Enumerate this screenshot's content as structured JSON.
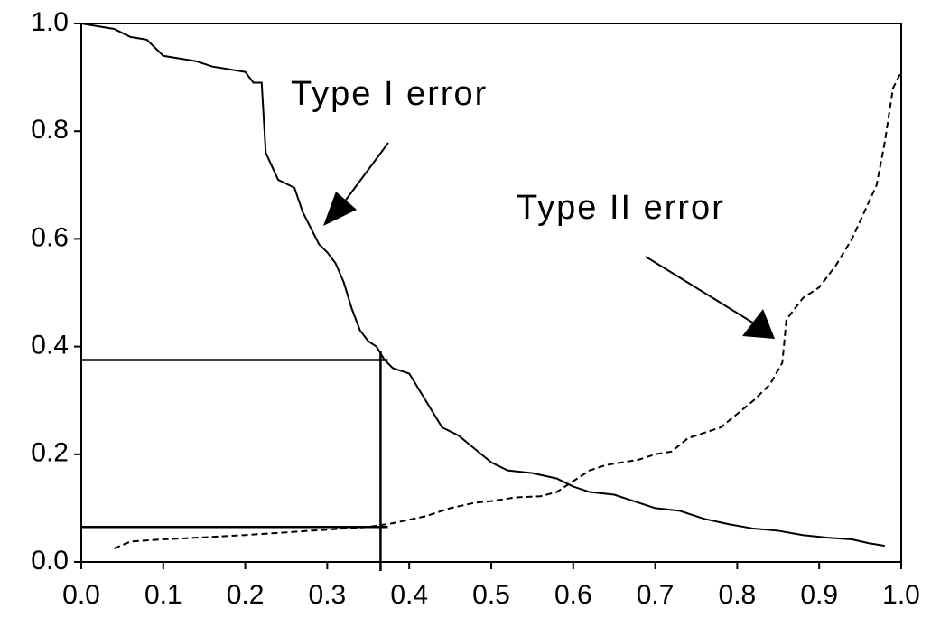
{
  "chart_data": {
    "type": "line",
    "annotations": [
      "Type I error",
      "Type II error"
    ],
    "series": [
      {
        "name": "Type I error",
        "color": "#000000",
        "dash": "solid",
        "x": [
          0.0,
          0.02,
          0.04,
          0.06,
          0.08,
          0.1,
          0.12,
          0.14,
          0.16,
          0.18,
          0.2,
          0.21,
          0.22,
          0.225,
          0.24,
          0.26,
          0.27,
          0.28,
          0.29,
          0.3,
          0.31,
          0.32,
          0.33,
          0.34,
          0.35,
          0.36,
          0.37,
          0.38,
          0.4,
          0.42,
          0.44,
          0.46,
          0.48,
          0.5,
          0.52,
          0.55,
          0.58,
          0.6,
          0.62,
          0.65,
          0.68,
          0.7,
          0.73,
          0.76,
          0.79,
          0.82,
          0.85,
          0.88,
          0.91,
          0.94,
          0.96,
          0.98
        ],
        "values": [
          1.0,
          0.995,
          0.99,
          0.975,
          0.97,
          0.94,
          0.935,
          0.93,
          0.92,
          0.915,
          0.91,
          0.89,
          0.89,
          0.76,
          0.71,
          0.695,
          0.65,
          0.62,
          0.59,
          0.575,
          0.555,
          0.52,
          0.47,
          0.43,
          0.41,
          0.4,
          0.375,
          0.36,
          0.35,
          0.3,
          0.25,
          0.235,
          0.21,
          0.185,
          0.17,
          0.165,
          0.155,
          0.14,
          0.13,
          0.125,
          0.11,
          0.1,
          0.095,
          0.08,
          0.07,
          0.062,
          0.058,
          0.05,
          0.045,
          0.042,
          0.035,
          0.03
        ]
      },
      {
        "name": "Type II error",
        "color": "#000000",
        "dash": "dashed",
        "x": [
          0.04,
          0.06,
          0.1,
          0.14,
          0.2,
          0.25,
          0.3,
          0.35,
          0.38,
          0.42,
          0.45,
          0.48,
          0.5,
          0.53,
          0.56,
          0.58,
          0.6,
          0.62,
          0.64,
          0.66,
          0.68,
          0.7,
          0.72,
          0.74,
          0.76,
          0.78,
          0.8,
          0.82,
          0.84,
          0.855,
          0.86,
          0.88,
          0.9,
          0.92,
          0.94,
          0.955,
          0.97,
          0.98,
          0.99,
          1.0
        ],
        "values": [
          0.025,
          0.038,
          0.042,
          0.045,
          0.05,
          0.055,
          0.06,
          0.065,
          0.072,
          0.085,
          0.1,
          0.11,
          0.113,
          0.12,
          0.122,
          0.13,
          0.15,
          0.17,
          0.18,
          0.185,
          0.19,
          0.2,
          0.205,
          0.23,
          0.24,
          0.25,
          0.275,
          0.3,
          0.33,
          0.37,
          0.45,
          0.49,
          0.51,
          0.55,
          0.6,
          0.65,
          0.7,
          0.78,
          0.88,
          0.91
        ]
      }
    ],
    "vlines": [
      0.365
    ],
    "hlines": [
      0.375,
      0.065
    ],
    "xlim": [
      0,
      1
    ],
    "ylim": [
      0,
      1
    ],
    "xticks": [
      {
        "value": 0,
        "label": "0.0"
      },
      0.1,
      0.2,
      0.3,
      0.4,
      0.5,
      0.6,
      0.7,
      0.8,
      0.9,
      {
        "value": 1,
        "label": "1.0"
      }
    ],
    "yticks": [
      {
        "value": 0,
        "label": "0.0"
      },
      0.2,
      0.4,
      0.6,
      0.8,
      {
        "value": 1,
        "label": "1.0"
      }
    ]
  }
}
